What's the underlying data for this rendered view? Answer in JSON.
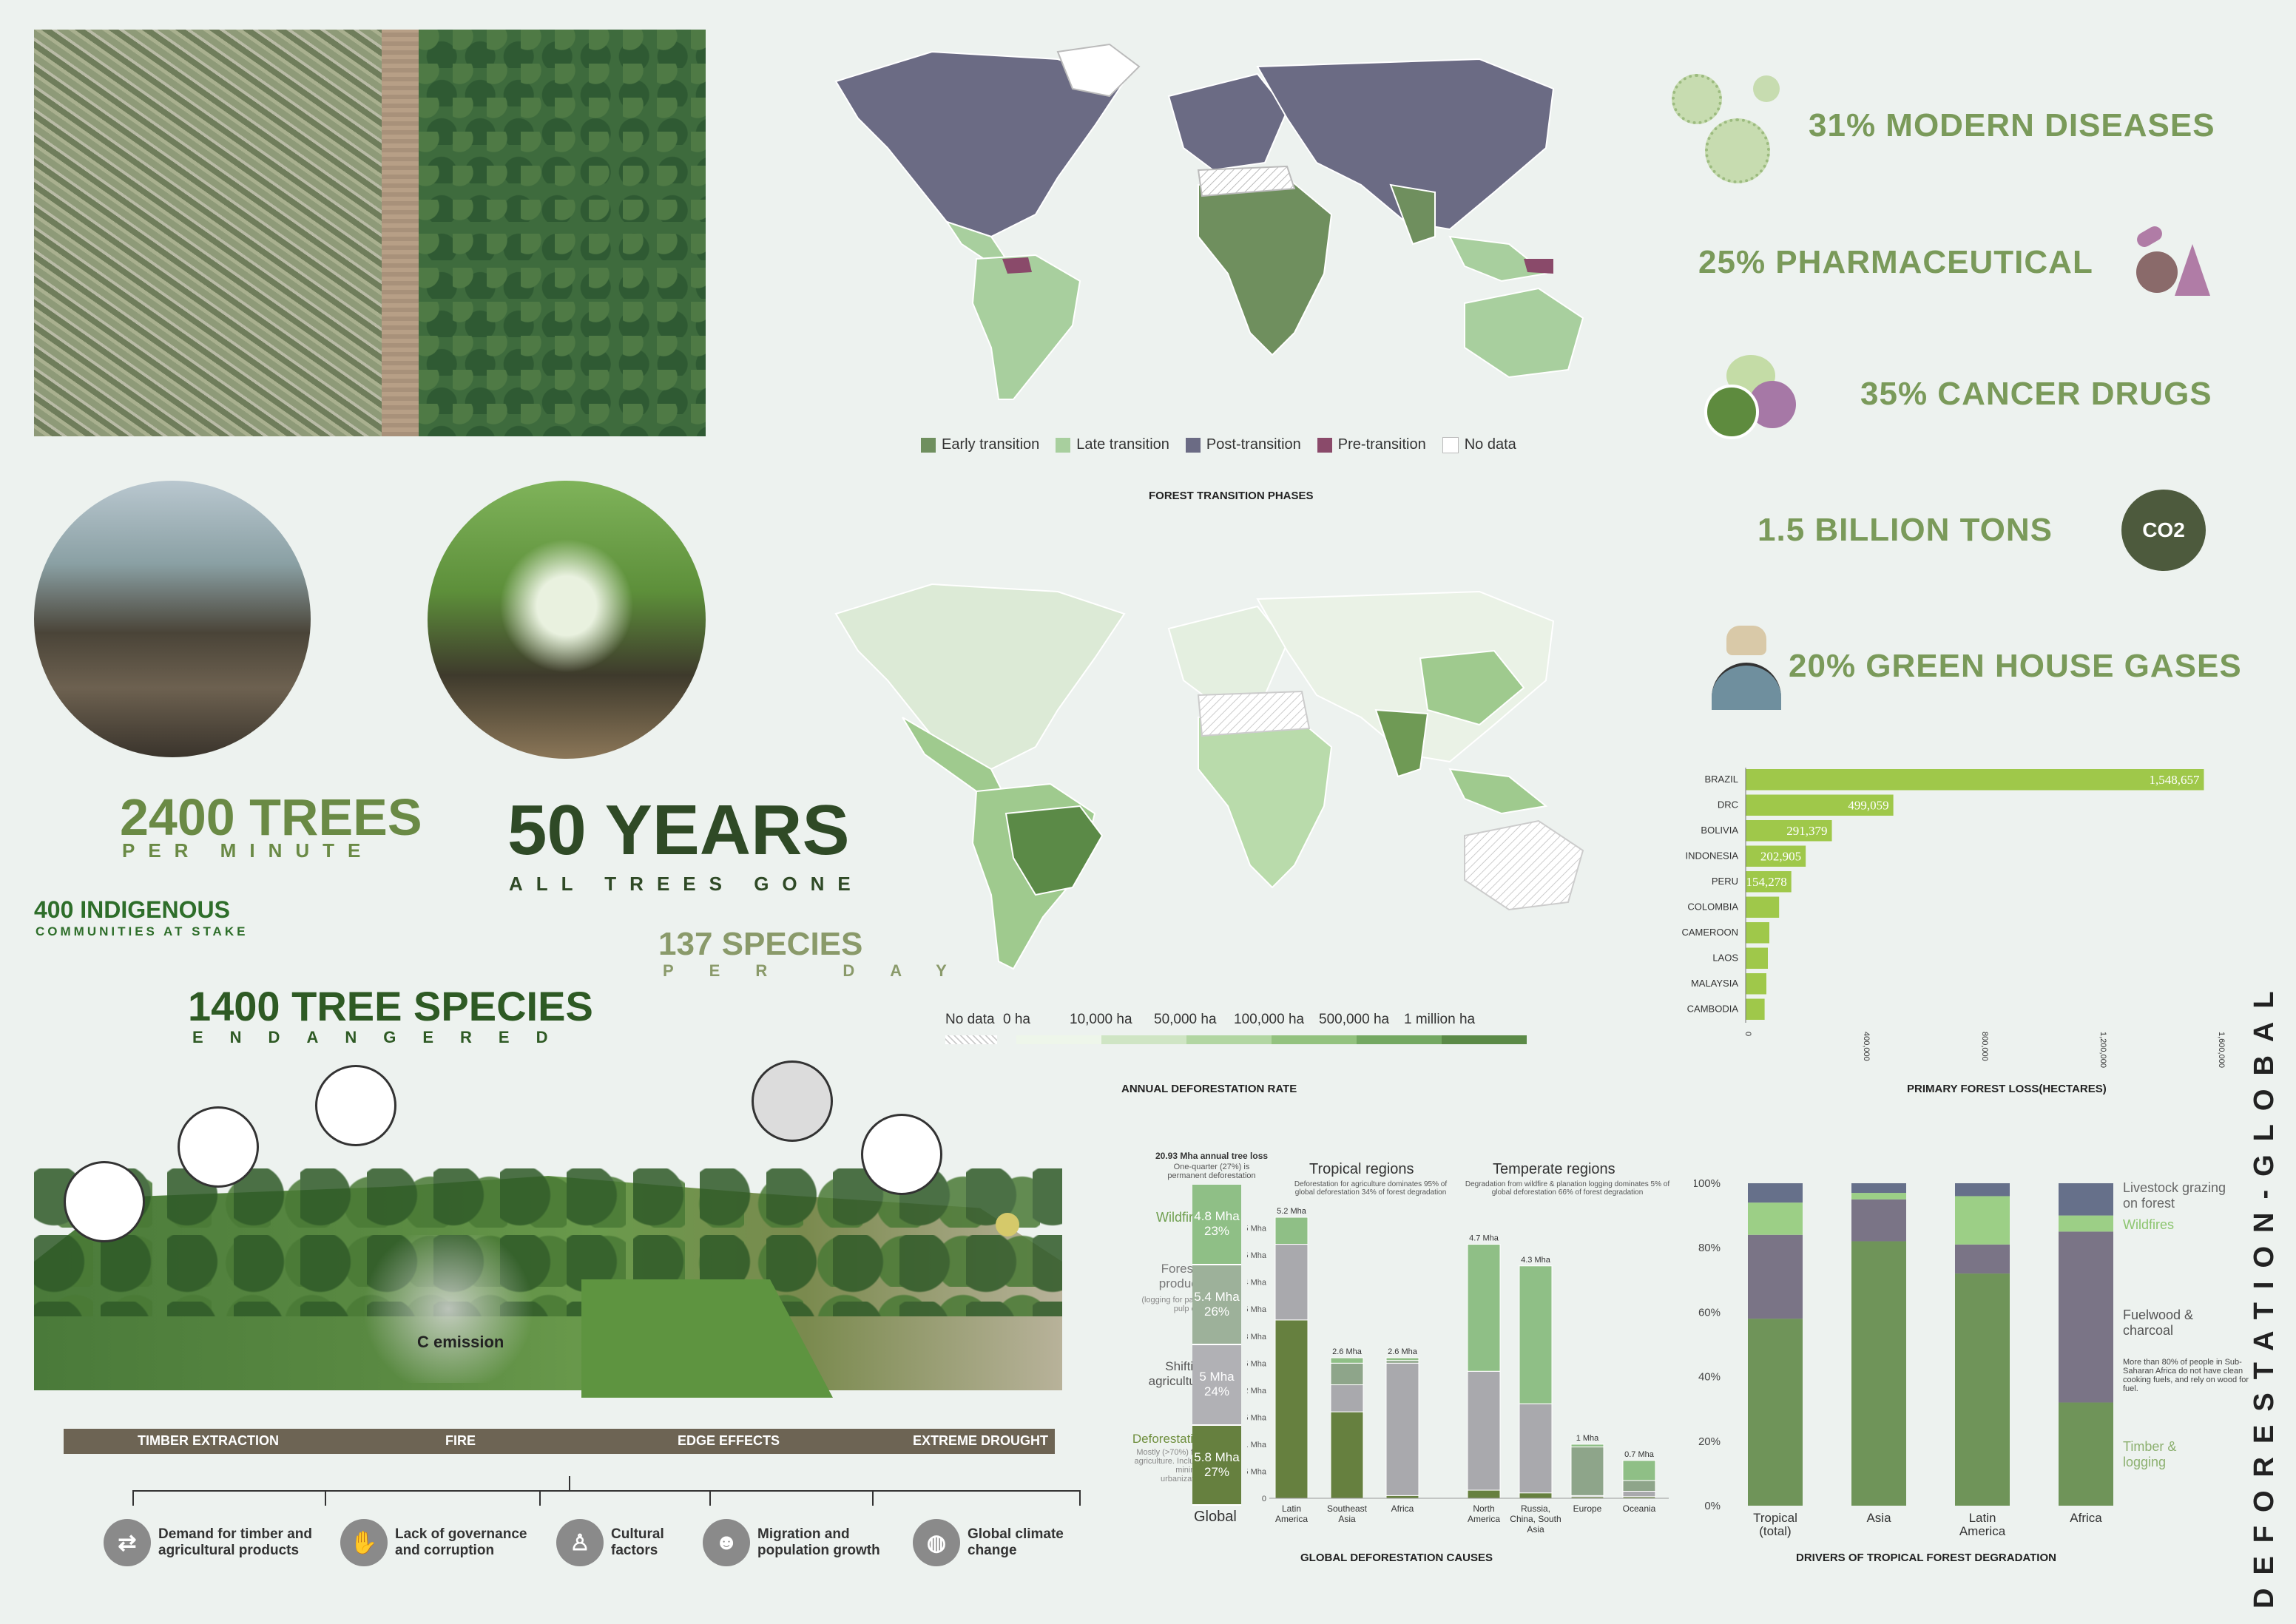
{
  "title": "DEFORESTATION-GLOBAL",
  "headline_stats": {
    "trees_value": "2400 TREES",
    "trees_sub": "PER MINUTE",
    "years_value": "50 YEARS",
    "years_sub": "ALL TREES GONE",
    "indigenous_value": "400 INDIGENOUS",
    "indigenous_sub": "COMMUNITIES AT STAKE",
    "species_value": "137 SPECIES",
    "species_sub": "PER DAY",
    "tree_species_value": "1400 TREE SPECIES",
    "tree_species_sub": "ENDANGERED"
  },
  "right_stats": [
    {
      "text": "31% MODERN DISEASES",
      "icon": "virus-icon"
    },
    {
      "text": "25% PHARMACEUTICAL",
      "icon": "lab-flask-icon"
    },
    {
      "text": "35% CANCER DRUGS",
      "icon": "pills-icon"
    },
    {
      "text": "1.5 BILLION TONS",
      "icon": "co2-cloud-icon",
      "icon_text": "CO2"
    },
    {
      "text": "20% GREEN HOUSE GASES",
      "icon": "earth-hand-icon"
    }
  ],
  "transition_map": {
    "caption": "FOREST TRANSITION PHASES",
    "legend": [
      {
        "label": "Early transition",
        "color": "#6f8f5e"
      },
      {
        "label": "Late transition",
        "color": "#a8cf9e"
      },
      {
        "label": "Post-transition",
        "color": "#6b6b84"
      },
      {
        "label": "Pre-transition",
        "color": "#8a4a6a"
      },
      {
        "label": "No data",
        "color": "#ffffff"
      }
    ]
  },
  "deforestation_map": {
    "caption": "ANNUAL DEFORESTATION RATE",
    "legend_nodata": "No data",
    "legend_steps": [
      "0 ha",
      "10,000 ha",
      "50,000 ha",
      "100,000 ha",
      "500,000 ha",
      "1 million ha"
    ]
  },
  "primary_loss": {
    "caption": "PRIMARY FOREST LOSS(HECTARES)",
    "ticks": [
      "0",
      "400,000",
      "800,000",
      "1,200,000",
      "1,600,000"
    ]
  },
  "scene": {
    "sections": [
      "TIMBER EXTRACTION",
      "FIRE",
      "EDGE EFFECTS",
      "EXTREME DROUGHT"
    ],
    "emission_label": "C emission",
    "causes": [
      {
        "label": "Demand for timber and agricultural products",
        "icon": "trade-network-icon"
      },
      {
        "label": "Lack of governance and corruption",
        "icon": "handshake-icon"
      },
      {
        "label": "Cultural factors",
        "icon": "person-icon"
      },
      {
        "label": "Migration and population growth",
        "icon": "people-group-icon"
      },
      {
        "label": "Global climate change",
        "icon": "globe-icon"
      }
    ]
  },
  "global_causes": {
    "caption": "GLOBAL DEFORESTATION CAUSES",
    "global_note": "20.93 Mha annual tree loss",
    "global_note2": "One-quarter (27%) is permanent deforestation",
    "global_label": "Global",
    "tropical_header": "Tropical regions",
    "tropical_note": "Deforestation for agriculture dominates 95% of global deforestation 34% of forest degradation",
    "temperate_header": "Temperate regions",
    "temperate_note": "Degradation from wildfire & planation logging dominates 5% of global deforestation 66% of forest degradation",
    "left_labels": [
      {
        "name": "Wildfires",
        "sub": ""
      },
      {
        "name": "Forestry products",
        "sub": "(logging for paper, pulp etc.)"
      },
      {
        "name": "Shifting agriculture",
        "sub": ""
      },
      {
        "name": "Deforestation",
        "sub": "Mostly (>70%) from agriculture. Includes mining & urbanization."
      }
    ],
    "yticks": [
      "0",
      "0.5 Mha",
      "1 Mha",
      "1.5 Mha",
      "2 Mha",
      "2.5 Mha",
      "3 Mha",
      "3.5 Mha",
      "4 Mha",
      "4.5 Mha",
      "5 Mha"
    ]
  },
  "drivers": {
    "caption": "DRIVERS OF TROPICAL FOREST DEGRADATION",
    "yticks": [
      "0%",
      "20%",
      "40%",
      "60%",
      "80%",
      "100%"
    ],
    "labels": [
      {
        "name": "Livestock grazing on forest",
        "color": "#66708a"
      },
      {
        "name": "Wildfires",
        "color": "#9ccf86"
      },
      {
        "name": "Fuelwood & charcoal",
        "color": "#7a7486"
      },
      {
        "name": "Timber & logging",
        "color": "#6f9459"
      }
    ],
    "fuel_note": "More than 80% of people in Sub-Saharan Africa do not have clean cooking fuels, and rely on wood for fuel."
  },
  "chart_data": [
    {
      "type": "bar",
      "orientation": "horizontal",
      "title": "PRIMARY FOREST LOSS(HECTARES)",
      "categories": [
        "BRAZIL",
        "DRC",
        "BOLIVIA",
        "INDONESIA",
        "PERU",
        "COLOMBIA",
        "CAMEROON",
        "LAOS",
        "MALAYSIA",
        "CAMBODIA"
      ],
      "values": [
        1548657,
        499059,
        291379,
        202905,
        154278,
        113000,
        80000,
        75000,
        70000,
        64000
      ],
      "value_labels": [
        "1,548,657",
        "499,059",
        "291,379",
        "202,905",
        "154,278",
        "",
        "",
        "",
        "",
        ""
      ],
      "xlim": [
        0,
        1600000
      ],
      "color": "#9fc84a"
    },
    {
      "type": "bar",
      "stacked": true,
      "title": "GLOBAL DEFORESTATION CAUSES",
      "categories": [
        "Latin America",
        "Southeast Asia",
        "Africa",
        "North America",
        "Russia, China, South Asia",
        "Europe",
        "Oceania"
      ],
      "totals": [
        "5.2 Mha",
        "2.6 Mha",
        "2.6 Mha",
        "4.7 Mha",
        "4.3 Mha",
        "1 Mha",
        "0.7 Mha"
      ],
      "ylim": [
        0,
        5.2
      ],
      "series": [
        {
          "name": "Deforestation",
          "color": "#66803f",
          "values": [
            3.3,
            1.6,
            0.05,
            0.15,
            0.1,
            0.03,
            0.03
          ]
        },
        {
          "name": "Shifting agriculture",
          "color": "#a9a9ad",
          "values": [
            1.4,
            0.5,
            2.45,
            2.2,
            1.65,
            0.02,
            0.1
          ]
        },
        {
          "name": "Forestry products",
          "color": "#8ea58a",
          "values": [
            0.0,
            0.4,
            0.05,
            0.0,
            0.0,
            0.9,
            0.2
          ]
        },
        {
          "name": "Wildfires",
          "color": "#8fbf86",
          "values": [
            0.5,
            0.1,
            0.05,
            2.35,
            2.55,
            0.05,
            0.37
          ]
        }
      ],
      "global": [
        {
          "name": "Wildfires",
          "value": "4.8 Mha",
          "pct": "23%",
          "color": "#8fbf86"
        },
        {
          "name": "Forestry products",
          "value": "5.4 Mha",
          "pct": "26%",
          "color": "#9db19a"
        },
        {
          "name": "Shifting agriculture",
          "value": "5 Mha",
          "pct": "24%",
          "color": "#b1b1b5"
        },
        {
          "name": "Deforestation",
          "value": "5.8 Mha",
          "pct": "27%",
          "color": "#66803f"
        }
      ]
    },
    {
      "type": "bar",
      "stacked": true,
      "percent": true,
      "title": "DRIVERS OF TROPICAL FOREST DEGRADATION",
      "categories": [
        "Tropical (total)",
        "Asia",
        "Latin America",
        "Africa"
      ],
      "ylim": [
        0,
        100
      ],
      "series": [
        {
          "name": "Timber & logging",
          "color": "#6f9459",
          "values": [
            58,
            82,
            72,
            32
          ]
        },
        {
          "name": "Fuelwood & charcoal",
          "color": "#7a7486",
          "values": [
            26,
            13,
            9,
            53
          ]
        },
        {
          "name": "Wildfires",
          "color": "#9ccf86",
          "values": [
            10,
            2,
            15,
            5
          ]
        },
        {
          "name": "Livestock grazing on forest",
          "color": "#66708a",
          "values": [
            6,
            3,
            4,
            10
          ]
        }
      ]
    }
  ]
}
